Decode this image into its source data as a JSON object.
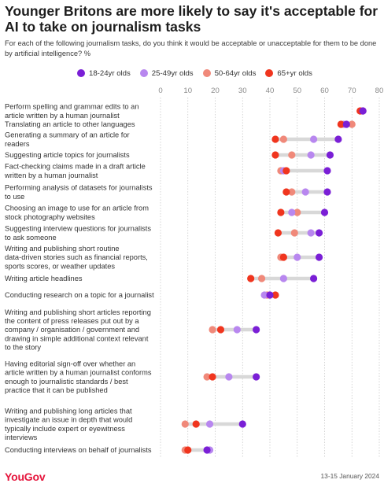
{
  "header": {
    "title": "Younger Britons are more likely to say it's acceptable for AI to take on journalism tasks",
    "subtitle": "For each of the following journalism tasks, do you think it would be acceptable or unacceptable for them to be done by artificial intelligence? %"
  },
  "footer": {
    "brand": "YouGov",
    "date": "13-15 January 2024"
  },
  "chart_data": {
    "type": "scatter",
    "style": "dot-plot",
    "title": "Younger Britons are more likely to say it's acceptable for AI to take on journalism tasks",
    "subtitle": "For each of the following journalism tasks, do you think it would be acceptable or unacceptable for them to be done by artificial intelligence? %",
    "xlim": [
      0,
      80
    ],
    "xticks": [
      0,
      10,
      20,
      30,
      40,
      50,
      60,
      70,
      80
    ],
    "grid": true,
    "legend_position": "top",
    "series": [
      {
        "name": "18-24yr olds",
        "color": "#7a1fd6"
      },
      {
        "name": "25-49yr olds",
        "color": "#b887ef"
      },
      {
        "name": "50-64yr olds",
        "color": "#f0897a"
      },
      {
        "name": "65+yr olds",
        "color": "#f0351e"
      }
    ],
    "categories": [
      {
        "label": "Perform spelling and grammar edits to an article written by a human journalist",
        "values": [
          74,
          74,
          74,
          73
        ]
      },
      {
        "label": "Translating an article to other languages",
        "values": [
          68,
          67,
          70,
          66
        ]
      },
      {
        "label": "Generating a summary of an article for readers",
        "values": [
          65,
          56,
          45,
          42
        ]
      },
      {
        "label": "Suggesting article topics for journalists",
        "values": [
          62,
          55,
          48,
          42
        ]
      },
      {
        "label": "Fact-checking claims made in a draft article written by a human journalist",
        "values": [
          61,
          45,
          44,
          46
        ]
      },
      {
        "label": "Performing analysis of datasets for journalists to use",
        "values": [
          61,
          53,
          48,
          46
        ]
      },
      {
        "label": "Choosing an image to use for an article from stock photography websites",
        "values": [
          60,
          48,
          50,
          44
        ]
      },
      {
        "label": "Suggesting interview questions for journalists to ask someone",
        "values": [
          58,
          55,
          49,
          43
        ]
      },
      {
        "label": "Writing and publishing short routine data-driven stories such as financial reports, sports scores, or weather updates",
        "values": [
          58,
          50,
          44,
          45
        ]
      },
      {
        "label": "Writing article headlines",
        "values": [
          56,
          45,
          37,
          33
        ]
      },
      {
        "label": "Conducting research on a topic for a journalist",
        "values": [
          40,
          38,
          39,
          42
        ]
      },
      {
        "label": "Writing and publishing short articles reporting the content of press releases put out by a company / organisation / government and drawing in simple additional context relevant to the story",
        "values": [
          35,
          28,
          19,
          22
        ]
      },
      {
        "label": "Having editorial sign-off over whether an article written by a human journalist conforms enough to journalistic standards / best practice that it can be published",
        "values": [
          35,
          25,
          17,
          19
        ]
      },
      {
        "label": "Writing and publishing long articles that investigate an issue in depth that would typically include expert or eyewitness interviews",
        "values": [
          30,
          18,
          9,
          13
        ]
      },
      {
        "label": "Conducting interviews on behalf of journalists",
        "values": [
          17,
          18,
          9,
          10
        ]
      }
    ]
  }
}
